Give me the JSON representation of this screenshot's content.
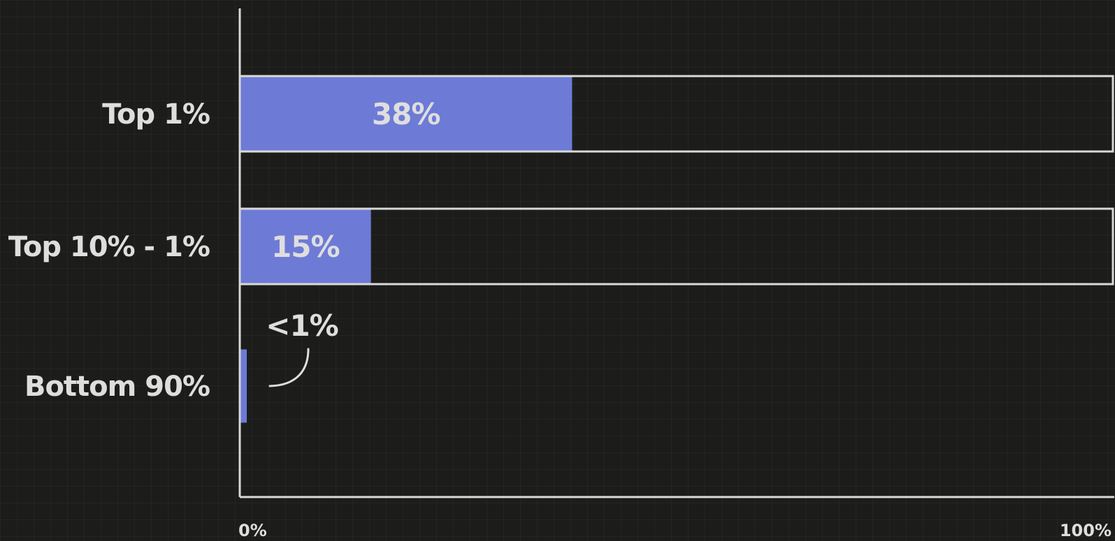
{
  "colors": {
    "background": "#1c1d1b",
    "bar_fill": "#6d7bd6",
    "track_outline": "#d9d9d6",
    "axis": "#d9d9d6",
    "text": "#dedede"
  },
  "chart_data": {
    "type": "bar",
    "orientation": "horizontal",
    "categories": [
      "Top 1%",
      "Top 10% - 1%",
      "Bottom 90%"
    ],
    "values": [
      38,
      15,
      0.8
    ],
    "value_labels": [
      "38%",
      "15%",
      "<1%"
    ],
    "track_outlined": [
      true,
      true,
      false
    ],
    "xlim": [
      0,
      100
    ],
    "x_ticks": [
      {
        "value": 0,
        "label": "0%"
      },
      {
        "value": 100,
        "label": "100%"
      }
    ],
    "title": "",
    "xlabel": "",
    "ylabel": "",
    "grid": true
  }
}
